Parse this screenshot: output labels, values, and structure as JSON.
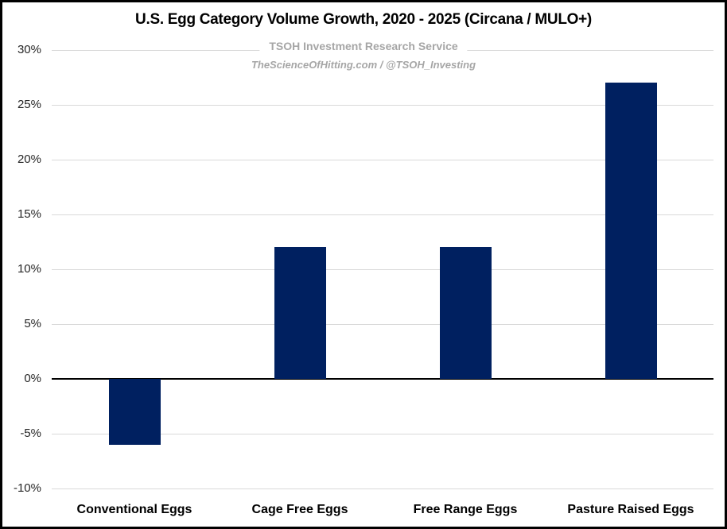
{
  "chart": {
    "title": "U.S. Egg Category Volume Growth, 2020 - 2025 (Circana / MULO+)",
    "subtitle": "TSOH Investment Research Service",
    "watermark": "TheScienceOfHitting.com / @TSOH_Investing"
  },
  "chart_data": {
    "type": "bar",
    "title": "U.S. Egg Category Volume Growth, 2020 - 2025 (Circana / MULO+)",
    "subtitle": "TSOH Investment Research Service",
    "watermark": "TheScienceOfHitting.com / @TSOH_Investing",
    "categories": [
      "Conventional Eggs",
      "Cage Free Eggs",
      "Free Range Eggs",
      "Pasture Raised Eggs"
    ],
    "values": [
      -6,
      12,
      12,
      27
    ],
    "xlabel": "",
    "ylabel": "",
    "ylim": [
      -10,
      30
    ],
    "ytick_step": 5,
    "ytick_labels": [
      "30%",
      "25%",
      "20%",
      "15%",
      "10%",
      "5%",
      "0%",
      "-5%",
      "-10%"
    ],
    "grid": true,
    "legend": false,
    "colors": {
      "bar": "#002060",
      "gridline": "#d9d9d9",
      "zero_line": "#000000",
      "axis_tick_label": "#262626",
      "category_label": "#000000",
      "title": "#000000",
      "subtitle": "#a6a6a6",
      "background": "#ffffff",
      "border": "#000000"
    }
  }
}
